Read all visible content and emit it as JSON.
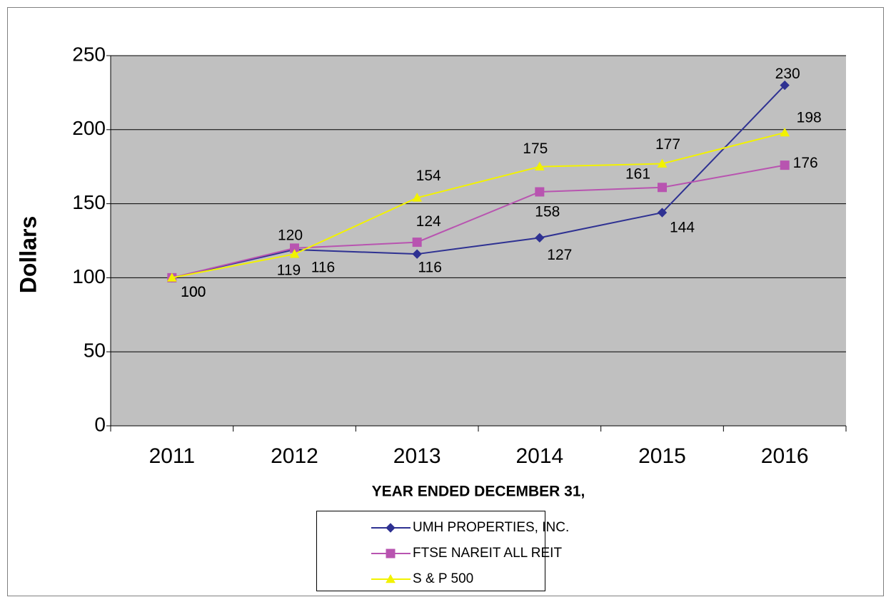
{
  "chart_data": {
    "type": "line",
    "x_label": "YEAR ENDED DECEMBER 31,",
    "y_label": "Dollars",
    "categories": [
      "2011",
      "2012",
      "2013",
      "2014",
      "2015",
      "2016"
    ],
    "series": [
      {
        "name": "UMH PROPERTIES, INC.",
        "color": "#2e3192",
        "marker": "diamond",
        "values": [
          100,
          119,
          116,
          127,
          144,
          230
        ]
      },
      {
        "name": "FTSE NAREIT ALL REIT",
        "color": "#b854b0",
        "marker": "square",
        "values": [
          100,
          120,
          124,
          158,
          161,
          176
        ]
      },
      {
        "name": "S & P 500",
        "color": "#f2f200",
        "marker": "triangle",
        "values": [
          100,
          116,
          154,
          175,
          177,
          198
        ]
      }
    ],
    "ylim": [
      0,
      250
    ],
    "yticks": [
      0,
      50,
      100,
      150,
      200,
      250
    ],
    "grid": true,
    "legend": "bottom"
  }
}
